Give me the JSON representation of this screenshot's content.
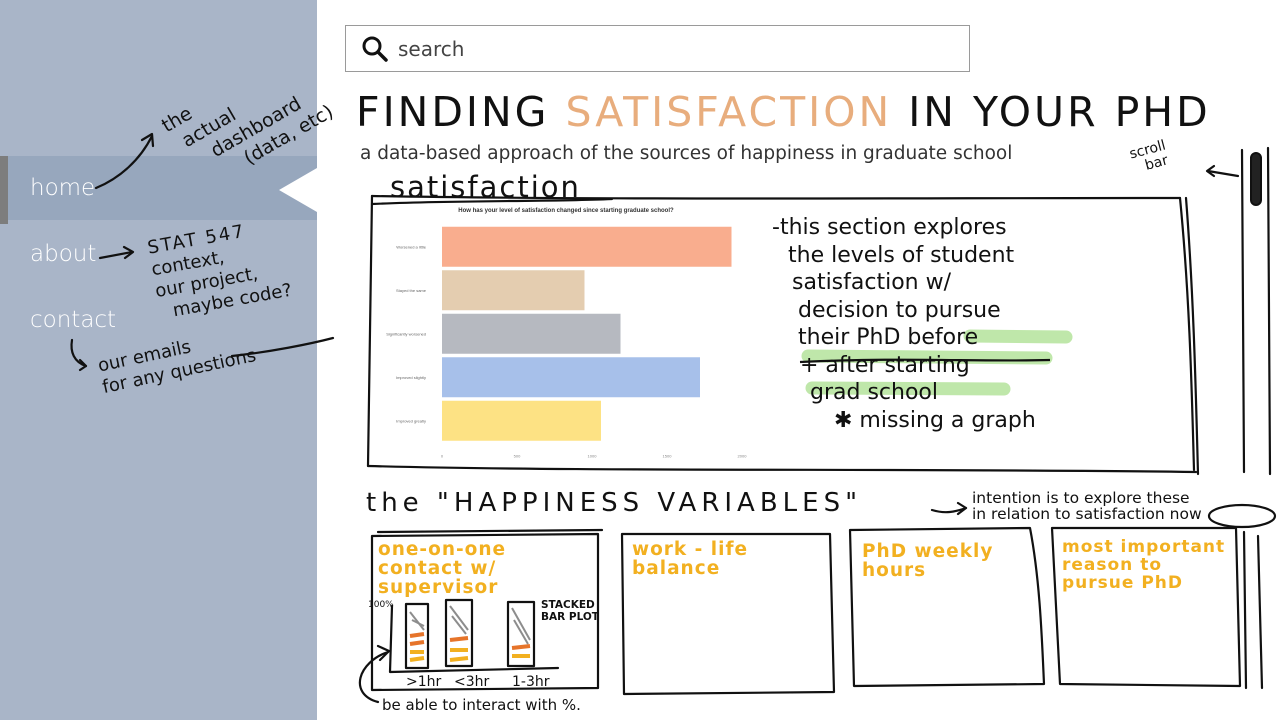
{
  "sidebar": {
    "items": [
      {
        "label": "home"
      },
      {
        "label": "about"
      },
      {
        "label": "contact"
      }
    ]
  },
  "search": {
    "placeholder": "search"
  },
  "header": {
    "title_pre": "FINDING ",
    "title_accent": "SATISFACTION",
    "title_post": " IN YOUR PHD",
    "subtitle": "a data-based approach of the sources of happiness in graduate school"
  },
  "colors": {
    "sidebar": "#a9b5c8",
    "accent": "#e8ad7d",
    "highlighter": "#b9e5a1",
    "marker_yellow": "#f2b020"
  },
  "annotations": {
    "home_note": [
      "the",
      "actual",
      "dashboard",
      "(data, etc)"
    ],
    "about_note": [
      "STAT 547",
      "context,",
      "our project,",
      "maybe code?"
    ],
    "contact_note": [
      "our emails",
      "for any questions"
    ],
    "scroll_note": [
      "scroll",
      "bar"
    ],
    "section_label": "satisfaction",
    "section_notes": [
      "-this section explores",
      "the levels of student",
      "satisfaction w/",
      "decision to pursue",
      "their PhD before",
      "+ after starting",
      "grad school",
      "✱ missing a graph"
    ],
    "happiness_title": "the \"HAPPINESS VARIABLES\"",
    "happiness_note": [
      "intention is to explore these",
      "in relation to satisfaction now"
    ],
    "interact_note": "be able to interact with %."
  },
  "cards": [
    {
      "title": "one-on-one contact w/ supervisor"
    },
    {
      "title": "work - life balance"
    },
    {
      "title": "PhD weekly hours"
    },
    {
      "title": "most important reason to pursue PhD"
    }
  ],
  "sketch_chart": {
    "type_label": "STACKED BAR PLOT",
    "y_top_label": "100%",
    "x_labels": [
      ">1hr",
      "<3hr",
      "1-3hr"
    ]
  },
  "chart_data": {
    "type": "bar",
    "orientation": "horizontal",
    "title": "How has your level of satisfaction changed since starting graduate school?",
    "categories": [
      "Worsened a little",
      "Stayed the same",
      "Significantly worsened",
      "Improved slightly",
      "Improved greatly"
    ],
    "values": [
      1930,
      950,
      1190,
      1720,
      1060
    ],
    "colors": [
      "#f9ad8e",
      "#e4cdb0",
      "#b6b9c0",
      "#a7c0ea",
      "#fde284"
    ],
    "xticks": [
      0,
      500,
      1000,
      1500,
      2000
    ],
    "xlim": [
      0,
      2000
    ]
  }
}
